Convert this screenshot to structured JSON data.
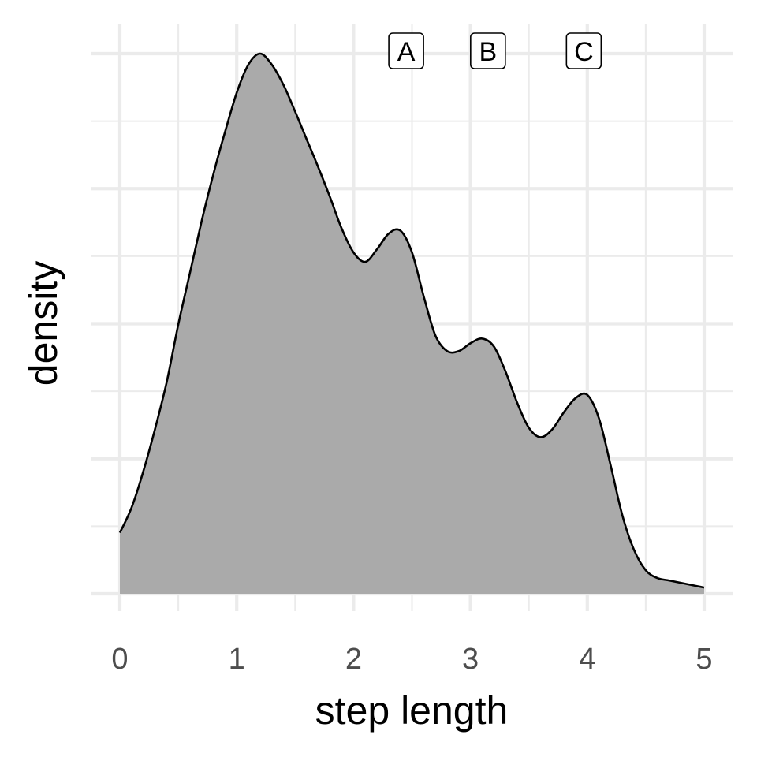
{
  "chart_data": {
    "type": "area",
    "xlabel": "step length",
    "ylabel": "density",
    "xlim": [
      0,
      5
    ],
    "x_ticks": [
      0,
      1,
      2,
      3,
      4,
      5
    ],
    "y_tick_labels_shown": false,
    "grid": true,
    "fill_color": "#aaaaaa",
    "line_color": "#000000",
    "series": [
      {
        "x": [
          0,
          0.1,
          0.2,
          0.3,
          0.4,
          0.5,
          0.6,
          0.7,
          0.8,
          0.9,
          1.0,
          1.1,
          1.2,
          1.3,
          1.4,
          1.5,
          1.6,
          1.7,
          1.8,
          1.9,
          2.0,
          2.1,
          2.2,
          2.3,
          2.4,
          2.5,
          2.6,
          2.7,
          2.8,
          2.9,
          3.0,
          3.1,
          3.2,
          3.3,
          3.4,
          3.5,
          3.6,
          3.7,
          3.8,
          3.9,
          4.0,
          4.1,
          4.2,
          4.3,
          4.4,
          4.5,
          4.6,
          4.7,
          4.8,
          4.9,
          5.0
        ],
        "y": [
          0.39,
          0.55,
          0.78,
          1.05,
          1.35,
          1.72,
          2.05,
          2.38,
          2.68,
          2.95,
          3.2,
          3.38,
          3.45,
          3.38,
          3.25,
          3.08,
          2.9,
          2.72,
          2.53,
          2.33,
          2.18,
          2.12,
          2.2,
          2.3,
          2.32,
          2.18,
          1.9,
          1.65,
          1.55,
          1.55,
          1.6,
          1.63,
          1.58,
          1.42,
          1.22,
          1.06,
          1.0,
          1.05,
          1.16,
          1.25,
          1.27,
          1.12,
          0.82,
          0.5,
          0.28,
          0.15,
          0.1,
          0.085,
          0.07,
          0.055,
          0.04
        ]
      }
    ],
    "annotations": [
      {
        "label": "A",
        "x": 2.45
      },
      {
        "label": "B",
        "x": 3.15
      },
      {
        "label": "C",
        "x": 3.97
      }
    ]
  }
}
